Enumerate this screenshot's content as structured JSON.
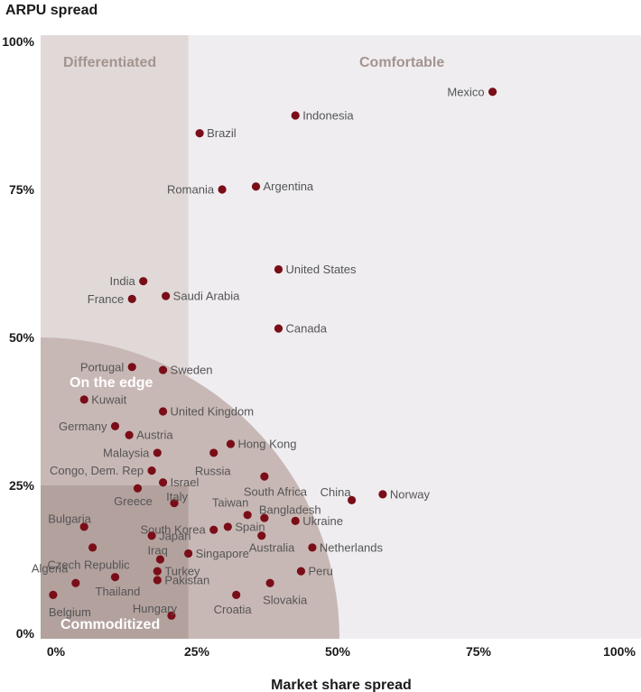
{
  "chart_data": {
    "type": "scatter",
    "ylabel": "ARPU spread",
    "xlabel": "Market share spread",
    "xlim": [
      0,
      100
    ],
    "ylim": [
      0,
      100
    ],
    "x_ticks": [
      "0%",
      "25%",
      "50%",
      "75%",
      "100%"
    ],
    "y_ticks": [
      "0%",
      "25%",
      "50%",
      "75%",
      "100%"
    ],
    "regions": {
      "differentiated": "Differentiated",
      "comfortable": "Comfortable",
      "on_the_edge": "On the edge",
      "commoditized": "Commoditized"
    },
    "colors": {
      "point": "#7a0e18",
      "plot_background": "#efedf0",
      "differentiated_band": "#e0d9d8",
      "on_the_edge_quarter_circle": "#c8b8b5",
      "commoditized_square": "#b3a19e",
      "region_label": "#a3948f"
    },
    "points": [
      {
        "label": "Mexico",
        "x": 77.5,
        "y": 91.5
      },
      {
        "label": "Indonesia",
        "x": 42.5,
        "y": 87.5
      },
      {
        "label": "Brazil",
        "x": 25.5,
        "y": 84.5
      },
      {
        "label": "Romania",
        "x": 29.5,
        "y": 75
      },
      {
        "label": "Argentina",
        "x": 35.5,
        "y": 75.5
      },
      {
        "label": "United States",
        "x": 39.5,
        "y": 61.5
      },
      {
        "label": "India",
        "x": 15.5,
        "y": 59.5
      },
      {
        "label": "France",
        "x": 13.5,
        "y": 56.5
      },
      {
        "label": "Saudi Arabia",
        "x": 19.5,
        "y": 57
      },
      {
        "label": "Canada",
        "x": 39.5,
        "y": 51.5
      },
      {
        "label": "Portugal",
        "x": 13.5,
        "y": 45
      },
      {
        "label": "Sweden",
        "x": 19,
        "y": 44.5
      },
      {
        "label": "Kuwait",
        "x": 5,
        "y": 39.5
      },
      {
        "label": "United Kingdom",
        "x": 19,
        "y": 37.5
      },
      {
        "label": "Germany",
        "x": 10.5,
        "y": 35
      },
      {
        "label": "Austria",
        "x": 13,
        "y": 33.5
      },
      {
        "label": "Hong Kong",
        "x": 31,
        "y": 32
      },
      {
        "label": "Malaysia",
        "x": 18,
        "y": 30.5
      },
      {
        "label": "Russia",
        "x": 28,
        "y": 30.5
      },
      {
        "label": "Congo, Dem. Rep",
        "x": 17,
        "y": 27.5
      },
      {
        "label": "South Africa",
        "x": 37,
        "y": 26.5
      },
      {
        "label": "Israel",
        "x": 19,
        "y": 25.5
      },
      {
        "label": "Greece",
        "x": 14.5,
        "y": 24.5
      },
      {
        "label": "Italy",
        "x": 21,
        "y": 22
      },
      {
        "label": "China",
        "x": 52.5,
        "y": 22.5
      },
      {
        "label": "Norway",
        "x": 58,
        "y": 23.5
      },
      {
        "label": "Bulgaria",
        "x": 5,
        "y": 18
      },
      {
        "label": "Taiwan",
        "x": 34,
        "y": 20
      },
      {
        "label": "Bangladesh",
        "x": 37,
        "y": 19.5
      },
      {
        "label": "South Korea",
        "x": 28,
        "y": 17.5
      },
      {
        "label": "Spain",
        "x": 30.5,
        "y": 18
      },
      {
        "label": "Ukraine",
        "x": 42.5,
        "y": 19
      },
      {
        "label": "Japan",
        "x": 17,
        "y": 16.5
      },
      {
        "label": "Australia",
        "x": 36.5,
        "y": 16.5
      },
      {
        "label": "Czech Republic",
        "x": 6.5,
        "y": 14.5
      },
      {
        "label": "Netherlands",
        "x": 45.5,
        "y": 14.5
      },
      {
        "label": "Iraq",
        "x": 18.5,
        "y": 12.5
      },
      {
        "label": "Singapore",
        "x": 23.5,
        "y": 13.5
      },
      {
        "label": "Turkey",
        "x": 18,
        "y": 10.5
      },
      {
        "label": "Peru",
        "x": 43.5,
        "y": 10.5
      },
      {
        "label": "Algeria",
        "x": 3.5,
        "y": 8.5
      },
      {
        "label": "Thailand",
        "x": 10.5,
        "y": 9.5
      },
      {
        "label": "Pakistan",
        "x": 18,
        "y": 9
      },
      {
        "label": "Slovakia",
        "x": 38,
        "y": 8.5
      },
      {
        "label": "Belgium",
        "x": -0.5,
        "y": 6.5
      },
      {
        "label": "Croatia",
        "x": 32,
        "y": 6.5
      },
      {
        "label": "Hungary",
        "x": 20.5,
        "y": 3
      }
    ]
  }
}
